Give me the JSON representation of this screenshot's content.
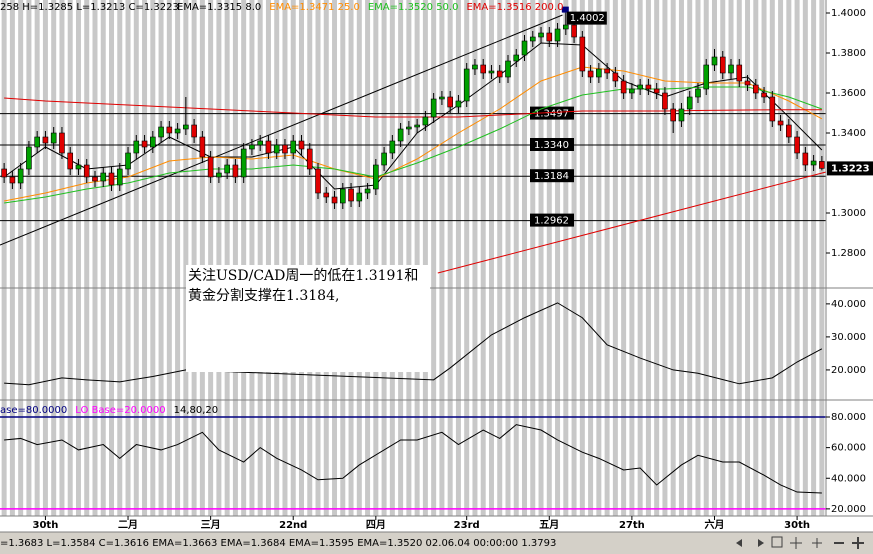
{
  "chart_data": [
    {
      "type": "candlestick",
      "ohlc_label": "258 H=1.3285 L=1.3213 C=1.3223",
      "xlim": [
        -0.5,
        99.5
      ],
      "ylim": [
        1.263,
        1.4065
      ],
      "yticks": [
        {
          "value": 1.4,
          "label": "1.4000"
        },
        {
          "value": 1.38,
          "label": "1.3800"
        },
        {
          "value": 1.36,
          "label": "1.3600"
        },
        {
          "value": 1.34,
          "label": "1.3400"
        },
        {
          "value": 1.3,
          "label": "1.3000"
        },
        {
          "value": 1.28,
          "label": "1.2800"
        }
      ],
      "up_color": "#00a000",
      "down_color": "#e00000",
      "ohlc": {
        "open": [
          1.322,
          1.318,
          1.315,
          1.322,
          1.333,
          1.338,
          1.335,
          1.34,
          1.33,
          1.322,
          1.324,
          1.318,
          1.316,
          1.32,
          1.314,
          1.322,
          1.33,
          1.336,
          1.333,
          1.338,
          1.343,
          1.34,
          1.342,
          1.344,
          1.338,
          1.328,
          1.318,
          1.32,
          1.324,
          1.318,
          1.332,
          1.334,
          1.336,
          1.33,
          1.334,
          1.33,
          1.336,
          1.332,
          1.322,
          1.31,
          1.308,
          1.305,
          1.312,
          1.306,
          1.31,
          1.312,
          1.324,
          1.33,
          1.336,
          1.342,
          1.343,
          1.344,
          1.348,
          1.357,
          1.358,
          1.353,
          1.356,
          1.372,
          1.374,
          1.37,
          1.371,
          1.368,
          1.376,
          1.379,
          1.386,
          1.388,
          1.39,
          1.386,
          1.392,
          1.394,
          1.388,
          1.371,
          1.368,
          1.372,
          1.37,
          1.366,
          1.36,
          1.362,
          1.364,
          1.362,
          1.36,
          1.352,
          1.346,
          1.352,
          1.358,
          1.362,
          1.374,
          1.378,
          1.37,
          1.374,
          1.366,
          1.364,
          1.36,
          1.358,
          1.346,
          1.344,
          1.338,
          1.33,
          1.324,
          1.3258
        ],
        "high": [
          1.325,
          1.321,
          1.325,
          1.336,
          1.341,
          1.341,
          1.343,
          1.343,
          1.333,
          1.327,
          1.327,
          1.321,
          1.323,
          1.323,
          1.325,
          1.333,
          1.339,
          1.339,
          1.341,
          1.346,
          1.346,
          1.345,
          1.358,
          1.347,
          1.341,
          1.331,
          1.323,
          1.327,
          1.327,
          1.335,
          1.337,
          1.339,
          1.339,
          1.337,
          1.337,
          1.339,
          1.339,
          1.335,
          1.325,
          1.313,
          1.311,
          1.315,
          1.315,
          1.313,
          1.315,
          1.327,
          1.333,
          1.339,
          1.345,
          1.346,
          1.347,
          1.351,
          1.36,
          1.361,
          1.361,
          1.359,
          1.375,
          1.377,
          1.377,
          1.374,
          1.374,
          1.379,
          1.382,
          1.389,
          1.391,
          1.393,
          1.393,
          1.395,
          1.4002,
          1.397,
          1.391,
          1.374,
          1.375,
          1.375,
          1.373,
          1.369,
          1.365,
          1.367,
          1.367,
          1.365,
          1.363,
          1.355,
          1.355,
          1.361,
          1.365,
          1.377,
          1.382,
          1.381,
          1.377,
          1.377,
          1.369,
          1.367,
          1.363,
          1.361,
          1.349,
          1.347,
          1.341,
          1.333,
          1.329,
          1.3285
        ],
        "low": [
          1.315,
          1.312,
          1.312,
          1.319,
          1.33,
          1.332,
          1.332,
          1.327,
          1.319,
          1.319,
          1.315,
          1.313,
          1.313,
          1.311,
          1.311,
          1.319,
          1.327,
          1.33,
          1.33,
          1.335,
          1.337,
          1.337,
          1.339,
          1.335,
          1.325,
          1.315,
          1.315,
          1.317,
          1.315,
          1.315,
          1.329,
          1.331,
          1.327,
          1.327,
          1.327,
          1.327,
          1.329,
          1.319,
          1.307,
          1.305,
          1.302,
          1.302,
          1.303,
          1.303,
          1.307,
          1.309,
          1.321,
          1.327,
          1.333,
          1.339,
          1.34,
          1.341,
          1.345,
          1.354,
          1.35,
          1.35,
          1.353,
          1.369,
          1.367,
          1.367,
          1.365,
          1.365,
          1.373,
          1.376,
          1.383,
          1.385,
          1.383,
          1.383,
          1.389,
          1.385,
          1.368,
          1.365,
          1.365,
          1.367,
          1.363,
          1.357,
          1.357,
          1.359,
          1.359,
          1.357,
          1.349,
          1.34,
          1.343,
          1.349,
          1.355,
          1.359,
          1.371,
          1.367,
          1.367,
          1.363,
          1.361,
          1.357,
          1.355,
          1.343,
          1.341,
          1.335,
          1.327,
          1.321,
          1.321,
          1.3213
        ],
        "close": [
          1.318,
          1.315,
          1.322,
          1.333,
          1.338,
          1.335,
          1.34,
          1.33,
          1.322,
          1.324,
          1.318,
          1.316,
          1.32,
          1.314,
          1.322,
          1.33,
          1.336,
          1.333,
          1.338,
          1.343,
          1.34,
          1.342,
          1.344,
          1.338,
          1.328,
          1.318,
          1.32,
          1.324,
          1.318,
          1.332,
          1.334,
          1.336,
          1.33,
          1.334,
          1.33,
          1.336,
          1.332,
          1.322,
          1.31,
          1.308,
          1.305,
          1.312,
          1.306,
          1.31,
          1.312,
          1.324,
          1.33,
          1.336,
          1.342,
          1.343,
          1.344,
          1.348,
          1.357,
          1.358,
          1.353,
          1.356,
          1.372,
          1.374,
          1.37,
          1.371,
          1.368,
          1.376,
          1.379,
          1.386,
          1.388,
          1.39,
          1.386,
          1.392,
          1.394,
          1.388,
          1.371,
          1.368,
          1.372,
          1.37,
          1.366,
          1.36,
          1.362,
          1.364,
          1.362,
          1.36,
          1.352,
          1.346,
          1.352,
          1.358,
          1.362,
          1.374,
          1.378,
          1.37,
          1.374,
          1.366,
          1.364,
          1.36,
          1.358,
          1.346,
          1.344,
          1.338,
          1.33,
          1.324,
          1.326,
          1.3223
        ]
      },
      "lines": [
        {
          "label": "EMA=1.3315 8.0",
          "color": "#000000",
          "x": [
            0,
            5,
            10,
            15,
            20,
            25,
            30,
            35,
            40,
            45,
            50,
            55,
            60,
            65,
            70,
            75,
            80,
            85,
            90,
            95,
            99
          ],
          "values": [
            1.318,
            1.333,
            1.322,
            1.324,
            1.338,
            1.328,
            1.328,
            1.333,
            1.312,
            1.314,
            1.34,
            1.354,
            1.369,
            1.385,
            1.384,
            1.366,
            1.358,
            1.365,
            1.368,
            1.348,
            1.3315
          ]
        },
        {
          "label": "EMA=1.3471 25.0",
          "color": "#ff8c00",
          "x": [
            0,
            5,
            10,
            15,
            20,
            25,
            30,
            35,
            40,
            45,
            50,
            55,
            60,
            65,
            70,
            75,
            80,
            85,
            90,
            95,
            99
          ],
          "values": [
            1.306,
            1.31,
            1.315,
            1.318,
            1.326,
            1.328,
            1.327,
            1.329,
            1.322,
            1.317,
            1.327,
            1.34,
            1.352,
            1.366,
            1.373,
            1.371,
            1.366,
            1.365,
            1.365,
            1.356,
            1.3471
          ]
        },
        {
          "label": "EMA=1.3520 50.0",
          "color": "#20c020",
          "x": [
            0,
            5,
            10,
            15,
            20,
            25,
            30,
            35,
            40,
            45,
            50,
            55,
            60,
            65,
            70,
            75,
            80,
            85,
            90,
            95,
            99
          ],
          "values": [
            1.305,
            1.308,
            1.312,
            1.315,
            1.32,
            1.322,
            1.322,
            1.324,
            1.322,
            1.318,
            1.325,
            1.333,
            1.342,
            1.352,
            1.359,
            1.362,
            1.362,
            1.363,
            1.363,
            1.358,
            1.352
          ]
        },
        {
          "label": "EMA=1.3516 200.0",
          "color": "#e00000",
          "x": [
            0,
            5,
            10,
            15,
            20,
            25,
            30,
            35,
            40,
            45,
            50,
            55,
            60,
            65,
            70,
            75,
            80,
            85,
            90,
            95,
            99
          ],
          "values": [
            1.3575,
            1.356,
            1.355,
            1.354,
            1.353,
            1.352,
            1.351,
            1.35,
            1.349,
            1.348,
            1.348,
            1.348,
            1.349,
            1.35,
            1.351,
            1.351,
            1.351,
            1.3513,
            1.3515,
            1.3516,
            1.3516
          ]
        }
      ],
      "levels": [
        1.3497,
        {
          "value": 1.334,
          "label": "1.3340"
        },
        1.3184,
        1.2962
      ],
      "trendlines": [
        {
          "color": "#000000",
          "x": [
            -0.5,
            67.6
          ],
          "values": [
            1.284,
            1.399
          ]
        },
        {
          "color": "#e00000",
          "x": [
            52.5,
            99.5
          ],
          "values": [
            1.27,
            1.3205
          ]
        }
      ]
    },
    {
      "type": "line",
      "xlim": [
        -0.5,
        99.5
      ],
      "ylim": [
        11.5,
        44.2
      ],
      "yticks": [
        {
          "value": 40,
          "label": "40.000"
        },
        {
          "value": 30,
          "label": "30.000"
        },
        {
          "value": 20,
          "label": "20.000"
        }
      ],
      "color": "#000000",
      "x": [
        0,
        3,
        7,
        10,
        14,
        18,
        22,
        52,
        54,
        59,
        63,
        67,
        70,
        73,
        77,
        81,
        84,
        89,
        93,
        96,
        99
      ],
      "values": [
        16,
        15.5,
        17.6,
        17,
        16.4,
        18,
        20,
        17,
        20.6,
        30.6,
        35.8,
        40.3,
        35.8,
        27.6,
        23.6,
        20,
        19,
        15.8,
        17.6,
        22.4,
        26.4
      ]
    },
    {
      "type": "line",
      "xlim": [
        -0.5,
        99.5
      ],
      "ylim": [
        16,
        89.8
      ],
      "yticks": [
        {
          "value": 80,
          "label": "80.000"
        },
        {
          "value": 60,
          "label": "60.000"
        },
        {
          "value": 40,
          "label": "40.000"
        },
        {
          "value": 20,
          "label": "20.000"
        }
      ],
      "color": "#000000",
      "params_label": "14,80,20",
      "hlines": [
        {
          "value": 80,
          "label": "ase=80.0000",
          "color": "#000080"
        },
        {
          "value": 20,
          "label": "LO Base=20.0000",
          "color": "#ff00ff"
        }
      ],
      "x": [
        0,
        2,
        4,
        7,
        9,
        12,
        14,
        16,
        19,
        21,
        24,
        26,
        29,
        31,
        33,
        36,
        38,
        41,
        43,
        46,
        48,
        50,
        53,
        55,
        58,
        60,
        62,
        65,
        67,
        70,
        72,
        75,
        77,
        79,
        82,
        84,
        87,
        89,
        92,
        94,
        96,
        99
      ],
      "values": [
        65,
        66,
        62,
        65,
        58.5,
        62,
        53,
        62,
        58.5,
        62,
        70,
        58.5,
        50.6,
        60,
        53,
        45.4,
        39,
        40,
        48.7,
        58.5,
        65,
        65,
        70,
        62,
        71.5,
        66,
        75,
        71.5,
        65,
        57,
        53,
        45.4,
        46.7,
        35.6,
        48.7,
        55,
        50.6,
        50.6,
        42,
        35.6,
        31,
        30.4
      ],
      "xticks": [
        {
          "value": 5,
          "label": "30th"
        },
        {
          "value": 15,
          "label": "二月"
        },
        {
          "value": 25,
          "label": "三月"
        },
        {
          "value": 35,
          "label": "22nd"
        },
        {
          "value": 45,
          "label": "四月"
        },
        {
          "value": 56,
          "label": "23rd"
        },
        {
          "value": 66,
          "label": "五月"
        },
        {
          "value": 76,
          "label": "27th"
        },
        {
          "value": 86,
          "label": "六月"
        },
        {
          "value": 96,
          "label": "30th"
        }
      ]
    }
  ],
  "annotation": {
    "lines": [
      "关注USD/CAD周一的低在1.3191和",
      "黄金分割支撑在1.3184,"
    ]
  },
  "status_bar": {
    "text": "=1.3683 L=1.3584 C=1.3616 EMA=1.3663 EMA=1.3684 EMA=1.3595 EMA=1.3520 02.06.04 00:00:00 1.3793"
  }
}
